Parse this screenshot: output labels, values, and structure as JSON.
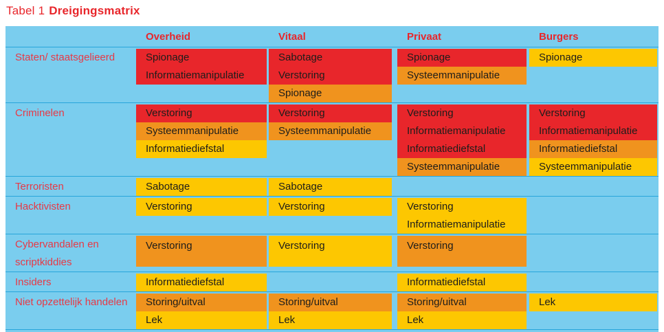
{
  "title": {
    "prefix": "Tabel 1",
    "name": "Dreigingsmatrix"
  },
  "colors": {
    "red": "#e8262b",
    "orange": "#f0931e",
    "yellow": "#fdc701",
    "table_bg": "#7acdee",
    "divider": "#27a5da",
    "title_red": "#e8262b",
    "header_red": "#e8262b",
    "label_red": "#e73946",
    "cell_text": "#1d1d1b"
  },
  "columns": [
    {
      "id": "overheid",
      "label": "Overheid"
    },
    {
      "id": "vitaal",
      "label": "Vitaal"
    },
    {
      "id": "privaat",
      "label": "Privaat"
    },
    {
      "id": "burgers",
      "label": "Burgers"
    }
  ],
  "rows": [
    {
      "label": "Staten/ staatsgelieerd",
      "tall": false,
      "cells": [
        [
          {
            "text": "Spionage",
            "color": "red"
          },
          {
            "text": "Informatiemanipulatie",
            "color": "red"
          }
        ],
        [
          {
            "text": "Sabotage",
            "color": "red"
          },
          {
            "text": "Verstoring",
            "color": "red"
          },
          {
            "text": "Spionage",
            "color": "orange"
          }
        ],
        [
          {
            "text": "Spionage",
            "color": "red"
          },
          {
            "text": "Systeemmanipulatie",
            "color": "orange"
          }
        ],
        [
          {
            "text": "Spionage",
            "color": "yellow"
          }
        ]
      ]
    },
    {
      "label": "Criminelen",
      "tall": false,
      "cells": [
        [
          {
            "text": "Verstoring",
            "color": "red"
          },
          {
            "text": "Systeemmanipulatie",
            "color": "orange"
          },
          {
            "text": "Informatiediefstal",
            "color": "yellow"
          }
        ],
        [
          {
            "text": "Verstoring",
            "color": "red"
          },
          {
            "text": "Systeemmanipulatie",
            "color": "orange"
          }
        ],
        [
          {
            "text": "Verstoring",
            "color": "red"
          },
          {
            "text": "Informatiemanipulatie",
            "color": "red"
          },
          {
            "text": "Informatiediefstal",
            "color": "red"
          },
          {
            "text": "Systeemmanipulatie",
            "color": "orange"
          }
        ],
        [
          {
            "text": "Verstoring",
            "color": "red"
          },
          {
            "text": "Informatiemanipulatie",
            "color": "red"
          },
          {
            "text": "Informatiediefstal",
            "color": "orange"
          },
          {
            "text": "Systeemmanipulatie",
            "color": "yellow"
          }
        ]
      ]
    },
    {
      "label": "Terroristen",
      "tall": false,
      "cells": [
        [
          {
            "text": "Sabotage",
            "color": "yellow"
          }
        ],
        [
          {
            "text": "Sabotage",
            "color": "yellow"
          }
        ],
        [],
        []
      ]
    },
    {
      "label": "Hacktivisten",
      "tall": false,
      "cells": [
        [
          {
            "text": "Verstoring",
            "color": "yellow"
          }
        ],
        [
          {
            "text": "Verstoring",
            "color": "yellow"
          }
        ],
        [
          {
            "text": "Verstoring",
            "color": "yellow"
          },
          {
            "text": "Informatiemanipulatie",
            "color": "yellow"
          }
        ],
        []
      ]
    },
    {
      "label": "Cybervandalen en scriptkiddies",
      "tall": true,
      "cells": [
        [
          {
            "text": "Verstoring",
            "color": "orange"
          }
        ],
        [
          {
            "text": "Verstoring",
            "color": "yellow"
          }
        ],
        [
          {
            "text": "Verstoring",
            "color": "orange"
          }
        ],
        []
      ]
    },
    {
      "label": "Insiders",
      "tall": false,
      "cells": [
        [
          {
            "text": "Informatiediefstal",
            "color": "yellow"
          }
        ],
        [],
        [
          {
            "text": "Informatiediefstal",
            "color": "yellow"
          }
        ],
        []
      ]
    },
    {
      "label": "Niet opzettelijk handelen",
      "tall": false,
      "cells": [
        [
          {
            "text": "Storing/uitval",
            "color": "orange"
          },
          {
            "text": "Lek",
            "color": "yellow"
          }
        ],
        [
          {
            "text": "Storing/uitval",
            "color": "orange"
          },
          {
            "text": "Lek",
            "color": "yellow"
          }
        ],
        [
          {
            "text": "Storing/uitval",
            "color": "orange"
          },
          {
            "text": "Lek",
            "color": "yellow"
          }
        ],
        [
          {
            "text": "Lek",
            "color": "yellow"
          }
        ]
      ]
    }
  ]
}
